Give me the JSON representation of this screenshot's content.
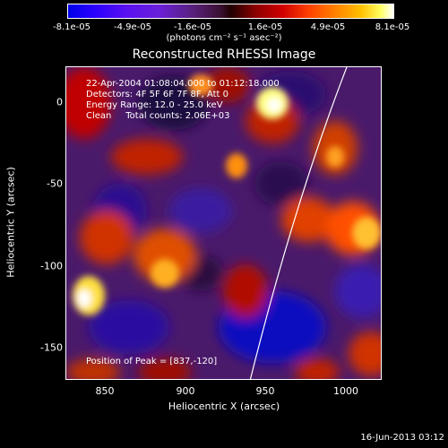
{
  "colorbar": {
    "ticks": [
      "-8.1e-05",
      "-4.9e-05",
      "-1.6e-05",
      "1.6e-05",
      "4.9e-05",
      "8.1e-05"
    ],
    "units": "(photons cm⁻² s⁻¹ asec⁻²)"
  },
  "title": "Reconstructed RHESSI Image",
  "annotations": {
    "time_range": "22-Apr-2004 01:08:04.000 to 01:12:18.000",
    "detectors": "Detectors: 4F 5F 6F 7F 8F, Att 0",
    "energy": "Energy Range: 12.0 - 25.0 keV",
    "clean": "Clean     Total counts: 2.06E+03",
    "peak": "Position of Peak = [837,-120]"
  },
  "axes": {
    "xlabel": "Heliocentric X (arcsec)",
    "ylabel": "Heliocentric Y (arcsec)",
    "xticks": [
      "850",
      "900",
      "950",
      "1000"
    ],
    "yticks": [
      "0",
      "-50",
      "-100",
      "-150"
    ]
  },
  "footer": "16-Jun-2013 03:12"
}
